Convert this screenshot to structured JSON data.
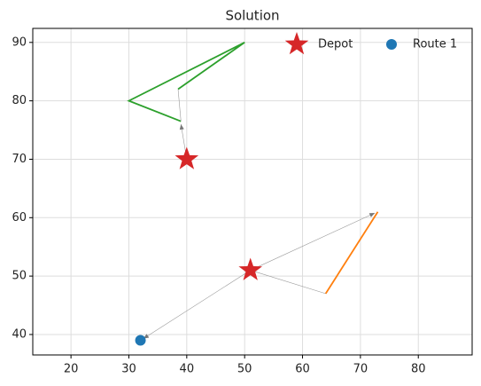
{
  "chart_data": {
    "type": "scatter",
    "title": "Solution",
    "xlim": [
      13.4,
      89.3
    ],
    "ylim": [
      36.5,
      92.4
    ],
    "xticks": [
      20,
      30,
      40,
      50,
      60,
      70,
      80
    ],
    "yticks": [
      40,
      50,
      60,
      70,
      80,
      90
    ],
    "grid": true,
    "legend": "upper right",
    "series": [
      {
        "name": "Depot",
        "marker": "star",
        "color": "#d62728",
        "x": [
          40,
          51
        ],
        "values": [
          70,
          51
        ]
      },
      {
        "name": "Route 1",
        "marker": "circle",
        "color": "#1f77b4",
        "x": [
          32
        ],
        "values": [
          39
        ]
      },
      {
        "marker": "line",
        "color": "#2ca02c",
        "x": [
          39,
          30,
          50,
          38.5
        ],
        "values": [
          76.5,
          80,
          90,
          82
        ]
      },
      {
        "marker": "line",
        "color": "#ff7f0e",
        "x": [
          64,
          73
        ],
        "values": [
          47,
          61
        ]
      },
      {
        "marker": "arrow",
        "color": "#999999",
        "x": [
          51,
          72.5
        ],
        "values": [
          51,
          60.8
        ]
      },
      {
        "marker": "thin",
        "color": "#999999",
        "x": [
          51,
          64
        ],
        "values": [
          51,
          47
        ]
      },
      {
        "marker": "arrow",
        "color": "#999999",
        "x": [
          51,
          32.5
        ],
        "values": [
          51,
          39.3
        ]
      },
      {
        "marker": "arrow",
        "color": "#999999",
        "x": [
          40,
          39
        ],
        "values": [
          70,
          76
        ]
      },
      {
        "marker": "thin",
        "color": "#999999",
        "x": [
          38.5,
          39
        ],
        "values": [
          82,
          76.5
        ]
      }
    ]
  }
}
